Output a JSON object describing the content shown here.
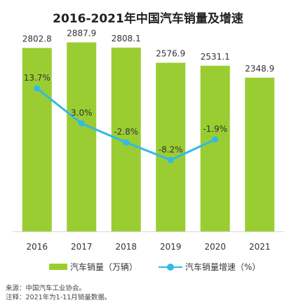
{
  "title": "2016-2021年中国汽车销量及增速",
  "colors": {
    "bar": "#9acd32",
    "line": "#35b8e6",
    "text": "#333333",
    "axis": "#d8d8d8"
  },
  "chart_data": {
    "type": "bar",
    "title": "2016-2021年中国汽车销量及增速",
    "categories": [
      "2016",
      "2017",
      "2018",
      "2019",
      "2020",
      "2021"
    ],
    "series": [
      {
        "name": "汽车销量（万辆）",
        "type": "bar",
        "values": [
          2802.8,
          2887.9,
          2808.1,
          2576.9,
          2531.1,
          2348.9
        ]
      },
      {
        "name": "汽车销量增速（%）",
        "type": "line",
        "values": [
          13.7,
          3.0,
          -2.8,
          -8.2,
          -1.9,
          null
        ]
      }
    ],
    "bar_labels": [
      "2802.8",
      "2887.9",
      "2808.1",
      "2576.9",
      "2531.1",
      "2348.9"
    ],
    "line_labels": [
      "13.7%",
      "3.0%",
      "-2.8%",
      "-8.2%",
      "-1.9%"
    ],
    "ylim_bars": [
      0,
      3000
    ],
    "ylim_line": [
      -30,
      30
    ],
    "grid": false,
    "legend": "bottom"
  },
  "legend": {
    "bar_label": "汽车销量（万辆）",
    "line_label": "汽车销量增速（%）"
  },
  "notes": {
    "source": "来源：中国汽车工业协会。",
    "note": "注释：2021年为1-11月销量数据。"
  }
}
